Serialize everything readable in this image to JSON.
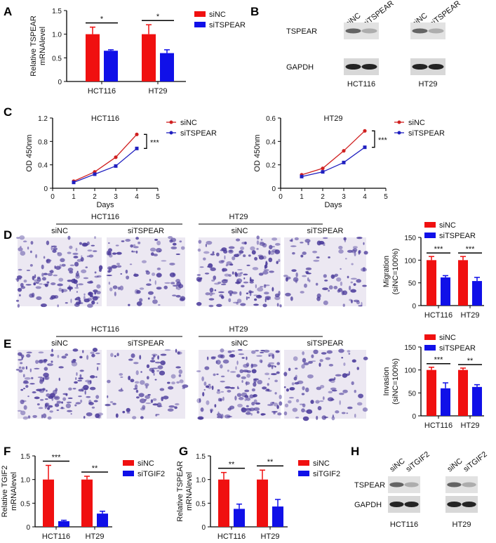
{
  "panel_labels": [
    "A",
    "B",
    "C",
    "D",
    "E",
    "F",
    "G",
    "H"
  ],
  "colors": {
    "siNC": "#f01010",
    "knockdown": "#1010e8",
    "line_siNC": "#d02020",
    "line_kd": "#2020c0"
  },
  "blots": [
    {
      "panel": "B",
      "lanes": [
        "siNC",
        "siTSPEAR"
      ],
      "rows": [
        "TSPEAR",
        "GAPDH"
      ],
      "cells": [
        "HCT116",
        "HT29"
      ]
    },
    {
      "panel": "H",
      "lanes": [
        "siNC",
        "siTGIF2"
      ],
      "rows": [
        "TSPEAR",
        "GAPDH"
      ],
      "cells": [
        "HCT116",
        "HT29"
      ]
    }
  ],
  "micrographs": [
    {
      "panel": "D",
      "cells": [
        "HCT116",
        "HT29"
      ],
      "conditions": [
        "siNC",
        "siTSPEAR"
      ]
    },
    {
      "panel": "E",
      "cells": [
        "HCT116",
        "HT29"
      ],
      "conditions": [
        "siNC",
        "siTSPEAR"
      ]
    }
  ],
  "chart_data": [
    {
      "panel": "A",
      "type": "bar",
      "categories": [
        "HCT116",
        "HT29"
      ],
      "ylabel": [
        "Relative TSPEAR",
        "mRNAlevel"
      ],
      "ylim": [
        0,
        1.5
      ],
      "yticks": [
        "0",
        "0.5",
        "1.0",
        "1.5"
      ],
      "legend": "right",
      "series": [
        {
          "name": "siNC",
          "values": [
            1.0,
            1.0
          ],
          "errors": [
            0.15,
            0.2
          ]
        },
        {
          "name": "siTSPEAR",
          "values": [
            0.65,
            0.6
          ],
          "errors": [
            0.02,
            0.07
          ]
        }
      ],
      "significance": [
        "*",
        "*"
      ]
    },
    {
      "panel": "C",
      "type": "line",
      "title": "HCT116",
      "xlabel": "Days",
      "ylabel": "OD 450nm",
      "x": [
        1,
        2,
        3,
        4
      ],
      "xlim": [
        0,
        5
      ],
      "xticks": [
        "0",
        "1",
        "2",
        "3",
        "4",
        "5"
      ],
      "ylim": [
        0,
        1.2
      ],
      "yticks": [
        "0",
        "0.4",
        "0.8",
        "1.2"
      ],
      "legend": "right",
      "series": [
        {
          "name": "siNC",
          "values": [
            0.12,
            0.28,
            0.53,
            0.92
          ]
        },
        {
          "name": "siTSPEAR",
          "values": [
            0.1,
            0.24,
            0.38,
            0.68
          ]
        }
      ],
      "significance": "***"
    },
    {
      "panel": "C",
      "type": "line",
      "title": "HT29",
      "xlabel": "Days",
      "ylabel": "OD 450nm",
      "x": [
        1,
        2,
        3,
        4
      ],
      "xlim": [
        0,
        5
      ],
      "xticks": [
        "0",
        "1",
        "2",
        "3",
        "4",
        "5"
      ],
      "ylim": [
        0,
        0.6
      ],
      "yticks": [
        "0",
        "0.2",
        "0.4",
        "0.6"
      ],
      "legend": "right",
      "series": [
        {
          "name": "siNC",
          "values": [
            0.115,
            0.17,
            0.32,
            0.49
          ]
        },
        {
          "name": "siTSPEAR",
          "values": [
            0.1,
            0.14,
            0.22,
            0.35
          ]
        }
      ],
      "significance": "***"
    },
    {
      "panel": "D",
      "type": "bar",
      "categories": [
        "HCT116",
        "HT29"
      ],
      "ylabel": [
        "Migration",
        "(siNC=100%)"
      ],
      "ylim": [
        0,
        150
      ],
      "yticks": [
        "0",
        "50",
        "100",
        "150"
      ],
      "legend": "top",
      "series": [
        {
          "name": "siNC",
          "values": [
            100,
            100
          ],
          "errors": [
            8,
            8
          ]
        },
        {
          "name": "siTSPEAR",
          "values": [
            62,
            54
          ],
          "errors": [
            4,
            8
          ]
        }
      ],
      "significance": [
        "***",
        "***"
      ]
    },
    {
      "panel": "E",
      "type": "bar",
      "categories": [
        "HCT116",
        "HT29"
      ],
      "ylabel": [
        "Invasion",
        "(siNC=100%)"
      ],
      "ylim": [
        0,
        150
      ],
      "yticks": [
        "0",
        "50",
        "100",
        "150"
      ],
      "legend": "top",
      "series": [
        {
          "name": "siNC",
          "values": [
            100,
            100
          ],
          "errors": [
            6,
            4
          ]
        },
        {
          "name": "siTSPEAR",
          "values": [
            60,
            63
          ],
          "errors": [
            12,
            5
          ]
        }
      ],
      "significance": [
        "***",
        "**"
      ]
    },
    {
      "panel": "F",
      "type": "bar",
      "categories": [
        "HCT116",
        "HT29"
      ],
      "ylabel": [
        "Relative TGIF2",
        "mRNAlevel"
      ],
      "ylim": [
        0,
        1.5
      ],
      "yticks": [
        "0",
        "0.5",
        "1.0",
        "1.5"
      ],
      "legend": "right",
      "series": [
        {
          "name": "siNC",
          "values": [
            1.0,
            1.0
          ],
          "errors": [
            0.3,
            0.07
          ]
        },
        {
          "name": "siTGIF2",
          "values": [
            0.12,
            0.28
          ],
          "errors": [
            0.02,
            0.05
          ]
        }
      ],
      "significance": [
        "***",
        "**"
      ]
    },
    {
      "panel": "G",
      "type": "bar",
      "categories": [
        "HCT116",
        "HT29"
      ],
      "ylabel": [
        "Relative TSPEAR",
        "mRNAlevel"
      ],
      "ylim": [
        0,
        1.5
      ],
      "yticks": [
        "0",
        "0.5",
        "1.0",
        "1.5"
      ],
      "legend": "right",
      "series": [
        {
          "name": "siNC",
          "values": [
            1.0,
            1.0
          ],
          "errors": [
            0.15,
            0.2
          ]
        },
        {
          "name": "siTGIF2",
          "values": [
            0.38,
            0.43
          ],
          "errors": [
            0.1,
            0.15
          ]
        }
      ],
      "significance": [
        "**",
        "**"
      ]
    }
  ]
}
